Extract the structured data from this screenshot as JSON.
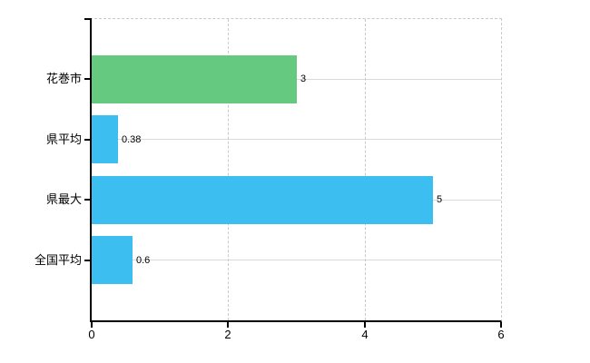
{
  "chart_data": {
    "type": "bar",
    "orientation": "horizontal",
    "categories": [
      "花巻市",
      "県平均",
      "県最大",
      "全国平均"
    ],
    "values": [
      3,
      0.38,
      5,
      0.6
    ],
    "value_labels": [
      "3",
      "0.38",
      "5",
      "0.6"
    ],
    "bar_colors": [
      "#65ca80",
      "#3cbef0",
      "#3cbef0",
      "#3cbef0"
    ],
    "xlim": [
      0,
      6
    ],
    "x_ticks": [
      0,
      2,
      4,
      6
    ],
    "x_tick_labels": [
      "0",
      "2",
      "4",
      "6"
    ],
    "grid": true,
    "legend": "none"
  }
}
